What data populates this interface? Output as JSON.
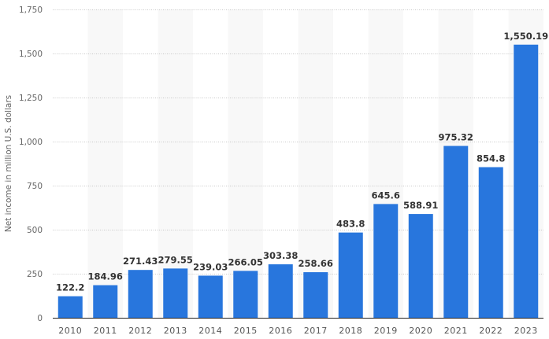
{
  "chart_data": {
    "type": "bar",
    "title": "",
    "xlabel": "",
    "ylabel": "Net income in million U.S. dollars",
    "categories": [
      "2010",
      "2011",
      "2012",
      "2013",
      "2014",
      "2015",
      "2016",
      "2017",
      "2018",
      "2019",
      "2020",
      "2021",
      "2022",
      "2023"
    ],
    "values": [
      122.2,
      184.96,
      271.43,
      279.55,
      239.03,
      266.05,
      303.38,
      258.66,
      483.8,
      645.6,
      588.91,
      975.32,
      854.8,
      1550.19
    ],
    "data_labels": [
      "122.2",
      "184.96",
      "271.43",
      "279.55",
      "239.03",
      "266.05",
      "303.38",
      "258.66",
      "483.8",
      "645.6",
      "588.91",
      "975.32",
      "854.8",
      "1,550.19"
    ],
    "ylim": [
      0,
      1750
    ],
    "yticks": [
      0,
      250,
      500,
      750,
      1000,
      1250,
      1500,
      1750
    ],
    "ytick_labels": [
      "0",
      "250",
      "500",
      "750",
      "1,000",
      "1,250",
      "1,500",
      "1,750"
    ],
    "grid": true,
    "legend": "none",
    "colors": {
      "bar": "#2876dd",
      "band": "#f8f8f8"
    }
  }
}
